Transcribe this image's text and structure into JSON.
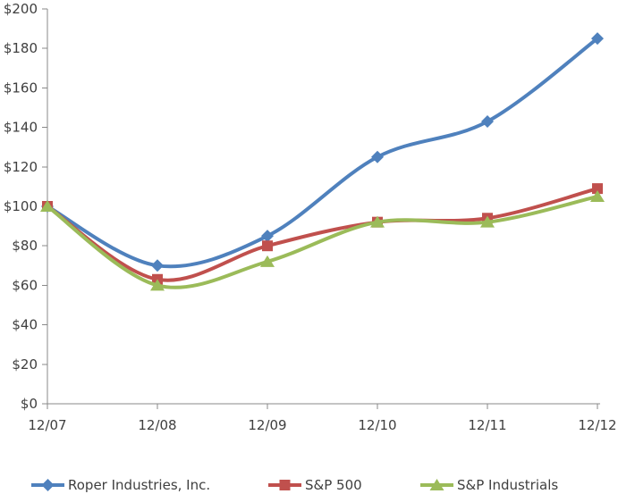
{
  "chart_data": {
    "type": "line",
    "title": "",
    "categories": [
      "12/07",
      "12/08",
      "12/09",
      "12/10",
      "12/11",
      "12/12"
    ],
    "series": [
      {
        "name": "Roper Industries, Inc.",
        "color": "#4F81BD",
        "marker": "diamond",
        "values": [
          100,
          70,
          85,
          125,
          143,
          185
        ]
      },
      {
        "name": "S&P 500",
        "color": "#C0504D",
        "marker": "square",
        "values": [
          100,
          63,
          80,
          92,
          94,
          109
        ]
      },
      {
        "name": "S&P Industrials",
        "color": "#9BBB59",
        "marker": "triangle",
        "values": [
          100,
          60,
          72,
          92,
          92,
          105
        ]
      }
    ],
    "xlabel": "",
    "ylabel": "",
    "ylim": [
      0,
      200
    ],
    "ytick_step": 20,
    "ytick_labels": [
      "$0",
      "$20",
      "$40",
      "$60",
      "$80",
      "$100",
      "$120",
      "$140",
      "$160",
      "$180",
      "$200"
    ],
    "grid": false,
    "smooth": true,
    "legend_position": "bottom"
  },
  "colors": {
    "axis": "#898989",
    "text": "#3F3F3F",
    "background": "#FFFFFF"
  }
}
